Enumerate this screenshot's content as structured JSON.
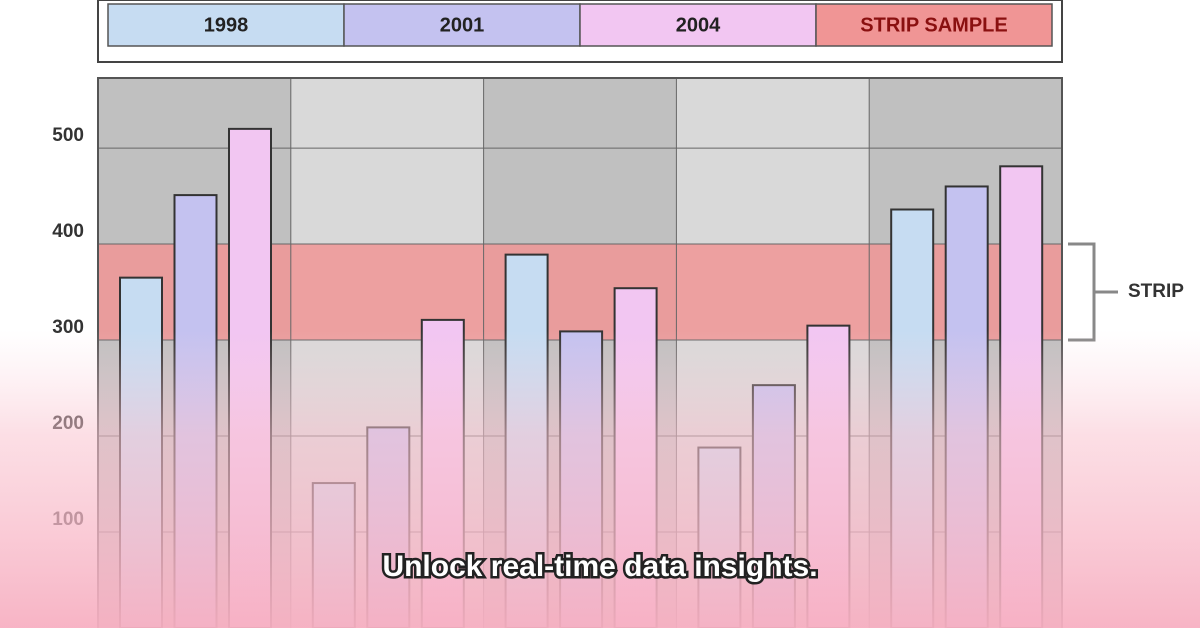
{
  "chart_data": {
    "type": "bar",
    "series": [
      {
        "name": "1998",
        "color": "#c6dcf2",
        "values": [
          365,
          151,
          389,
          188,
          436
        ]
      },
      {
        "name": "2001",
        "color": "#c4c2f0",
        "values": [
          451,
          209,
          309,
          253,
          460
        ]
      },
      {
        "name": "2004",
        "color": "#f2c6f2",
        "values": [
          520,
          321,
          354,
          315,
          481
        ]
      }
    ],
    "strip": {
      "name": "STRIP SAMPLE",
      "label": "STRIP",
      "from": 300,
      "to": 400,
      "color": "#f09595"
    },
    "ylim": [
      0,
      573
    ],
    "yticks": [
      100,
      200,
      300,
      400,
      500
    ],
    "grid": true
  },
  "caption": "Unlock real-time data insights."
}
